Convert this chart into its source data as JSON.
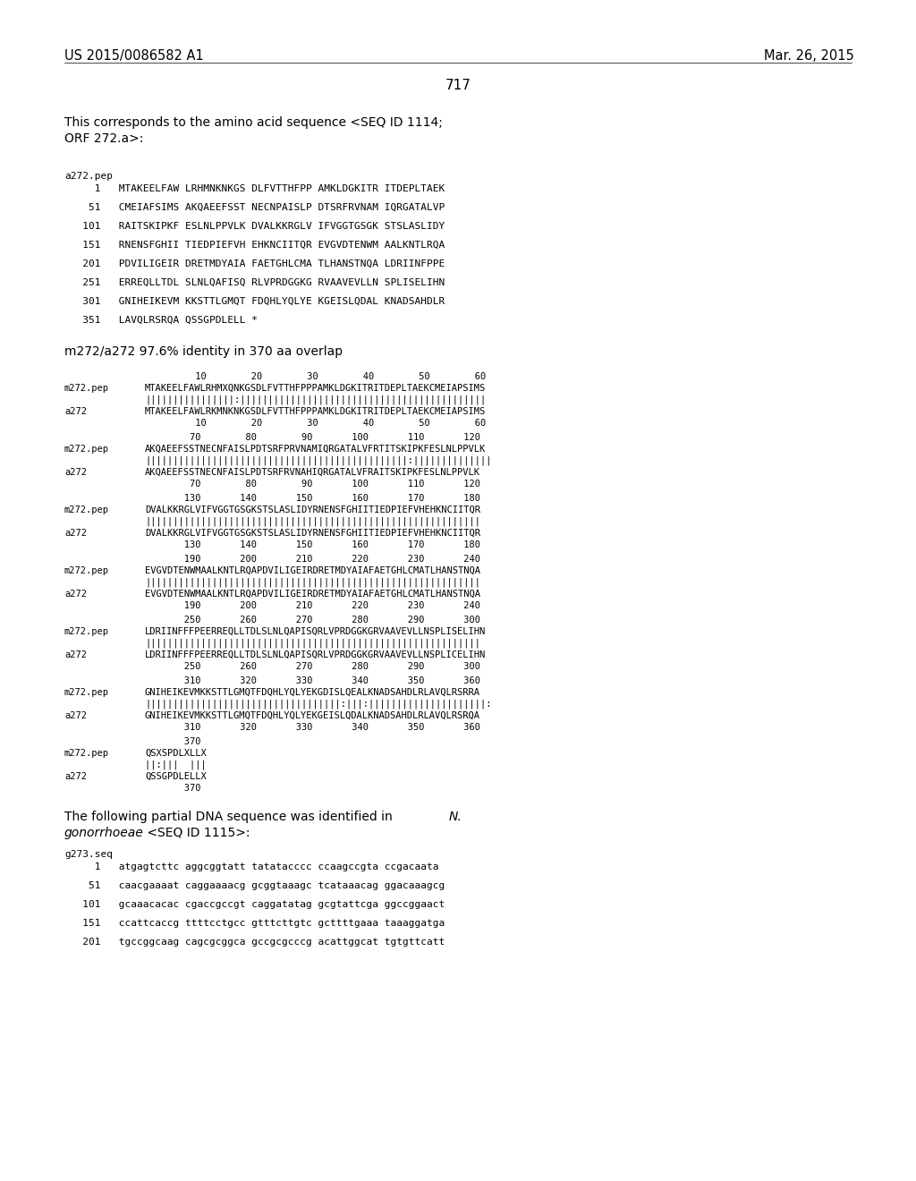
{
  "header_left": "US 2015/0086582 A1",
  "header_right": "Mar. 26, 2015",
  "page_number": "717",
  "bg_color": "#ffffff",
  "text_color": "#000000",
  "intro_line1": "This corresponds to the amino acid sequence <SEQ ID 1114;",
  "intro_line2": "ORF 272.a>:",
  "seq_label": "a272.pep",
  "seq_lines": [
    "     1   MTAKEELFAW LRHMNKNKGS DLFVTTHFPP AMKLDGKITR ITDEPLTAEK",
    "    51   CMEIAFSIMS AKQAEEFSST NECNPAISLP DTSRFRVNAM IQRGATALVP",
    "   101   RAITSKIPKF ESLNLPPVLK DVALKKRGLV IFVGGTGSGK STSLASLIDY",
    "   151   RNENSFGHII TIEDPIEFVH EHKNCIITQR EVGVDTENWM AALKNTLRQA",
    "   201   PDVILIGEIR DRETMDYAIA FAETGHLCMA TLHANSTNQA LDRIINFPPE",
    "   251   ERREQLLTDL SLNLQAFISQ RLVPRDGGKG RVAAVEVLLN SPLISELIHN",
    "   301   GNIHEIKEVM KKSTTLGMQT FDQHLYQLYE KGEISLQDAL KNADSAHDLR",
    "   351   LAVQLRSRQA QSSGPDLELL *"
  ],
  "align_title": "m272/a272 97.6% identity in 370 aa overlap",
  "align_blocks": [
    {
      "nums_top": "         10        20        30        40        50        60",
      "line1_label": "m272.pep",
      "line1_seq": "MTAKEELFAWLRHMXQNKGSDLFVTTHFPPPAMKLDGKITRITDEPLTAEKCMEIAPSIMS",
      "match_line": "||||||||||||||||:||||||||||||||||||||||||||||||||||||||||||||",
      "line2_label": "a272",
      "line2_seq": "MTAKEELFAWLRKMNKNKGSDLFVTTHFPPPAMKLDGKITRITDEPLTAEKCMEIAPSIMS",
      "nums_bot": "         10        20        30        40        50        60"
    },
    {
      "nums_top": "        70        80        90       100       110       120",
      "line1_label": "m272.pep",
      "line1_seq": "AKQAEEFSSTNECNFAISLPDTSRFPRVNAMIQRGATALVFRTITSKIPKFESLNLPPVLK",
      "match_line": "|||||||||||||||||||||||||||||||||||||||||||||||:||||||||||||||",
      "line2_label": "a272",
      "line2_seq": "AKQAEEFSSTNECNFAISLPDTSRFRVNAHIQRGATALVFRAITSKIPKFESLNLPPVLK",
      "nums_bot": "        70        80        90       100       110       120"
    },
    {
      "nums_top": "       130       140       150       160       170       180",
      "line1_label": "m272.pep",
      "line1_seq": "DVALKKRGLVIFVGGTGSGKSTSLASLIDYRNENSFGHIITIEDPIEFVHEHKNCIITQR",
      "match_line": "||||||||||||||||||||||||||||||||||||||||||||||||||||||||||||",
      "line2_label": "a272",
      "line2_seq": "DVALKKRGLVIFVGGTGSGKSTSLASLIDYRNENSFGHIITIEDPIEFVHEHKNCIITQR",
      "nums_bot": "       130       140       150       160       170       180"
    },
    {
      "nums_top": "       190       200       210       220       230       240",
      "line1_label": "m272.pep",
      "line1_seq": "EVGVDTENWMAALKNTLRQAPDVILIGEIRDRETMDYAIAFAETGHLCMATLHANSTNQA",
      "match_line": "||||||||||||||||||||||||||||||||||||||||||||||||||||||||||||",
      "line2_label": "a272",
      "line2_seq": "EVGVDTENWMAALKNTLRQAPDVILIGEIRDRETMDYAIAFAETGHLCMATLHANSTNQA",
      "nums_bot": "       190       200       210       220       230       240"
    },
    {
      "nums_top": "       250       260       270       280       290       300",
      "line1_label": "m272.pep",
      "line1_seq": "LDRIINFFFPEERREQLLTDLSLNLQAPISQRLVPRDGGKGRVAAVEVLLNSPLISELIHN",
      "match_line": "||||||||||||||||||||||||||||||||||||||||||||||||||||||||||||",
      "line2_label": "a272",
      "line2_seq": "LDRIINFFFPEERREQLLTDLSLNLQAPISQRLVPRDGGKGRVAAVEVLLNSPLICELIHN",
      "nums_bot": "       250       260       270       280       290       300"
    },
    {
      "nums_top": "       310       320       330       340       350       360",
      "line1_label": "m272.pep",
      "line1_seq": "GNIHEIKEVMKKSTTLGMQTFDQHLYQLYEKGDISLQEALKNADSAHDLRLAVQLRSRRA",
      "match_line": "|||||||||||||||||||||||||||||||||||:|||:|||||||||||||||||||||:",
      "line2_label": "a272",
      "line2_seq": "GNIHEIKEVMKKSTTLGMQTFDQHLYQLYEKGEISLQDALKNADSAHDLRLAVQLRSRQA",
      "nums_bot": "       310       320       330       340       350       360"
    },
    {
      "nums_top": "       370",
      "line1_label": "m272.pep",
      "line1_seq": "QSXSPDLXLLX",
      "match_line": "||:|||  |||",
      "line2_label": "a272",
      "line2_seq": "QSSGPDLELLX",
      "nums_bot": "       370"
    }
  ],
  "footer_intro_1": "The following partial DNA sequence was identified in ",
  "footer_intro_1_italic": "N.",
  "footer_intro_2": "gonorrhoeae",
  "footer_intro_2_rest": " <SEQ ID 1115>:",
  "footer_intro_2_italic": true,
  "dna_label": "g273.seq",
  "dna_lines": [
    "     1   atgagtcttc aggcggtatt tatatacccc ccaagccgta ccgacaata",
    "    51   caacgaaaat caggaaaacg gcggtaaagc tcataaacag ggacaaagcg",
    "   101   gcaaacacac cgaccgccgt caggatatag gcgtattcga ggccggaact",
    "   151   ccattcaccg ttttcctgcc gtttcttgtc gcttttgaaa taaaggatga",
    "   201   tgccggcaag cagcgcggca gccgcgcccg acattggcat tgtgttcatt"
  ]
}
